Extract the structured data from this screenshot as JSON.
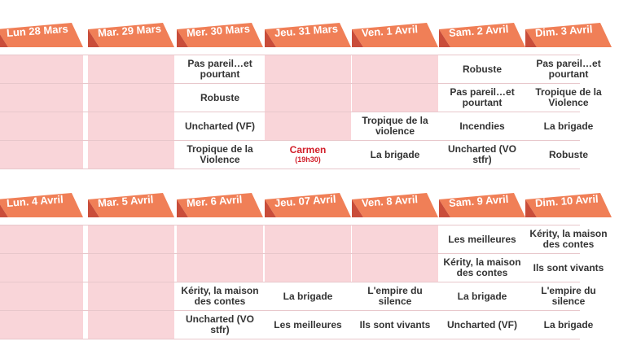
{
  "weeks": [
    {
      "days": [
        {
          "label": "Lun 28 Mars",
          "slots": [
            {
              "title": ""
            },
            {
              "title": ""
            },
            {
              "title": ""
            },
            {
              "title": ""
            }
          ]
        },
        {
          "label": "Mar. 29 Mars",
          "slots": [
            {
              "title": ""
            },
            {
              "title": ""
            },
            {
              "title": ""
            },
            {
              "title": ""
            }
          ]
        },
        {
          "label": "Mer. 30 Mars",
          "slots": [
            {
              "title": "Pas pareil…et pourtant"
            },
            {
              "title": "Robuste"
            },
            {
              "title": "Uncharted (VF)"
            },
            {
              "title": "Tropique de la Violence"
            }
          ]
        },
        {
          "label": "Jeu. 31 Mars",
          "slots": [
            {
              "title": ""
            },
            {
              "title": ""
            },
            {
              "title": ""
            },
            {
              "title": "Carmen",
              "note": "(19h30)",
              "highlight": true
            }
          ]
        },
        {
          "label": "Ven. 1 Avril",
          "slots": [
            {
              "title": ""
            },
            {
              "title": ""
            },
            {
              "title": "Tropique de la violence"
            },
            {
              "title": "La brigade"
            }
          ]
        },
        {
          "label": "Sam. 2 Avril",
          "slots": [
            {
              "title": "Robuste"
            },
            {
              "title": "Pas pareil…et pourtant"
            },
            {
              "title": "Incendies"
            },
            {
              "title": "Uncharted (VO stfr)"
            }
          ]
        },
        {
          "label": "Dim. 3 Avril",
          "slots": [
            {
              "title": "Pas pareil…et pourtant"
            },
            {
              "title": "Tropique de la Violence"
            },
            {
              "title": "La brigade"
            },
            {
              "title": "Robuste"
            }
          ]
        }
      ]
    },
    {
      "days": [
        {
          "label": "Lun. 4 Avril",
          "slots": [
            {
              "title": ""
            },
            {
              "title": ""
            },
            {
              "title": ""
            },
            {
              "title": ""
            }
          ]
        },
        {
          "label": "Mar. 5 Avril",
          "slots": [
            {
              "title": ""
            },
            {
              "title": ""
            },
            {
              "title": ""
            },
            {
              "title": ""
            }
          ]
        },
        {
          "label": "Mer. 6 Avril",
          "slots": [
            {
              "title": ""
            },
            {
              "title": ""
            },
            {
              "title": "Kérity, la maison des contes"
            },
            {
              "title": "Uncharted (VO stfr)"
            }
          ]
        },
        {
          "label": "Jeu. 07 Avril",
          "slots": [
            {
              "title": ""
            },
            {
              "title": ""
            },
            {
              "title": "La brigade"
            },
            {
              "title": "Les meilleures"
            }
          ]
        },
        {
          "label": "Ven. 8 Avril",
          "slots": [
            {
              "title": ""
            },
            {
              "title": ""
            },
            {
              "title": "L'empire du silence"
            },
            {
              "title": "Ils sont vivants"
            }
          ]
        },
        {
          "label": "Sam. 9 Avril",
          "slots": [
            {
              "title": "Les meilleures"
            },
            {
              "title": "Kérity, la maison des contes"
            },
            {
              "title": "La brigade"
            },
            {
              "title": "Uncharted (VF)"
            }
          ]
        },
        {
          "label": "Dim. 10 Avril",
          "slots": [
            {
              "title": "Kérity, la maison des contes"
            },
            {
              "title": "Ils sont vivants"
            },
            {
              "title": "L'empire du silence"
            },
            {
              "title": "La brigade"
            }
          ]
        }
      ]
    }
  ],
  "colors": {
    "header": "#f07f57",
    "header_fold": "#c94d3a",
    "empty_cell": "#f9d5d9",
    "highlight_text": "#d21f2a"
  }
}
